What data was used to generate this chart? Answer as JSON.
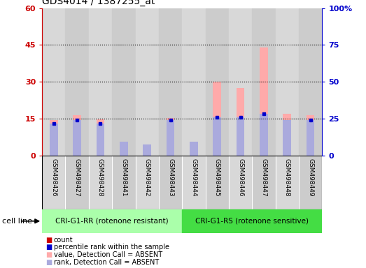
{
  "title": "GDS4014 / 1387255_at",
  "samples": [
    "GSM498426",
    "GSM498427",
    "GSM498428",
    "GSM498441",
    "GSM498442",
    "GSM498443",
    "GSM498444",
    "GSM498445",
    "GSM498446",
    "GSM498447",
    "GSM498448",
    "GSM498449"
  ],
  "count_values": [
    0,
    0,
    0,
    0,
    0,
    0,
    0,
    0,
    0,
    0,
    0,
    0
  ],
  "rank_values": [
    13.0,
    14.5,
    13.0,
    0,
    0,
    14.5,
    0,
    15.5,
    15.5,
    17.0,
    0,
    14.5
  ],
  "value_absent": [
    14.5,
    16.5,
    14.8,
    5.5,
    4.5,
    15.2,
    5.5,
    30.0,
    27.5,
    44.0,
    17.0,
    16.5
  ],
  "rank_absent": [
    13.0,
    14.5,
    13.0,
    5.5,
    4.5,
    14.5,
    5.5,
    15.5,
    15.5,
    17.0,
    14.5,
    14.5
  ],
  "group1_label": "CRI-G1-RR (rotenone resistant)",
  "group2_label": "CRI-G1-RS (rotenone sensitive)",
  "group1_count": 6,
  "group2_count": 6,
  "ylim_left": [
    0,
    60
  ],
  "ylim_right": [
    0,
    100
  ],
  "yticks_left": [
    0,
    15,
    30,
    45,
    60
  ],
  "ytick_labels_left": [
    "0",
    "15",
    "30",
    "45",
    "60"
  ],
  "yticks_right": [
    0,
    25,
    50,
    75,
    100
  ],
  "ytick_labels_right": [
    "0",
    "25",
    "50",
    "75",
    "100%"
  ],
  "color_count": "#cc0000",
  "color_rank": "#0000cc",
  "color_value_absent": "#ffaaaa",
  "color_rank_absent": "#aaaadd",
  "bar_width": 0.35,
  "legend_labels": [
    "count",
    "percentile rank within the sample",
    "value, Detection Call = ABSENT",
    "rank, Detection Call = ABSENT"
  ],
  "legend_colors": [
    "#cc0000",
    "#0000cc",
    "#ffaaaa",
    "#aaaadd"
  ],
  "col_bg_odd": "#d8d8d8",
  "col_bg_even": "#cccccc",
  "group1_color": "#aaffaa",
  "group2_color": "#44dd44"
}
